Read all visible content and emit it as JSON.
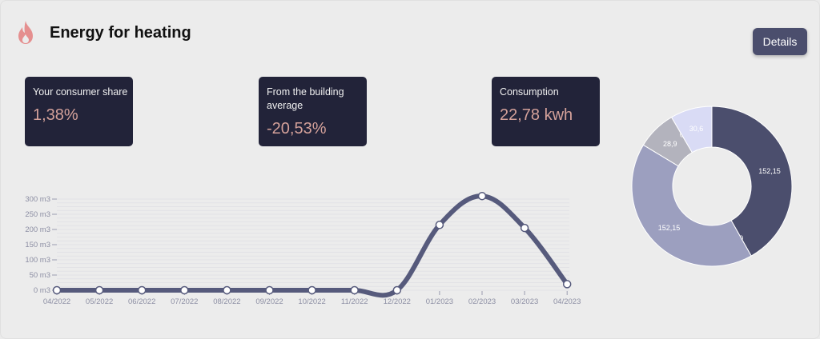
{
  "header": {
    "title": "Energy for heating",
    "icon": "flame-icon",
    "details_label": "Details"
  },
  "stats": [
    {
      "label": "Your consumer share",
      "value": "1,38%"
    },
    {
      "label": "From the building average",
      "value": "-20,53%"
    },
    {
      "label": "Consumption",
      "value": "22,78 kwh"
    }
  ],
  "colors": {
    "accent": "#4b4e6d",
    "stat_bg": "#222339",
    "stat_value": "#d4a19a",
    "flame": "#e58f8f"
  },
  "chart_data": [
    {
      "type": "line",
      "categories": [
        "04/2022",
        "05/2022",
        "06/2022",
        "07/2022",
        "08/2022",
        "09/2022",
        "10/2022",
        "11/2022",
        "12/2022",
        "01/2023",
        "02/2023",
        "03/2023",
        "04/2023"
      ],
      "series": [
        {
          "values": [
            0,
            0,
            0,
            0,
            0,
            0,
            0,
            0,
            0,
            215,
            310,
            205,
            20
          ]
        }
      ],
      "y_ticks": [
        "0 m3",
        "50 m3",
        "100 m3",
        "150 m3",
        "200 m3",
        "250 m3",
        "300 m3"
      ],
      "ylim": [
        0,
        300
      ],
      "grid": true,
      "line_color": "#565a7c"
    },
    {
      "type": "pie",
      "donut": true,
      "slices": [
        {
          "label": "152,15",
          "value": 152.15,
          "color": "#4b4e6d"
        },
        {
          "label": "0",
          "value": 0,
          "color": "#4b4e6d"
        },
        {
          "label": "152,15",
          "value": 152.15,
          "color": "#9c9fbf"
        },
        {
          "label": "28,9",
          "value": 28.9,
          "color": "#b3b3bd"
        },
        {
          "label": "0",
          "value": 0,
          "color": "#b3b3bd"
        },
        {
          "label": "30,6",
          "value": 30.6,
          "color": "#d9dbf5"
        }
      ]
    }
  ]
}
